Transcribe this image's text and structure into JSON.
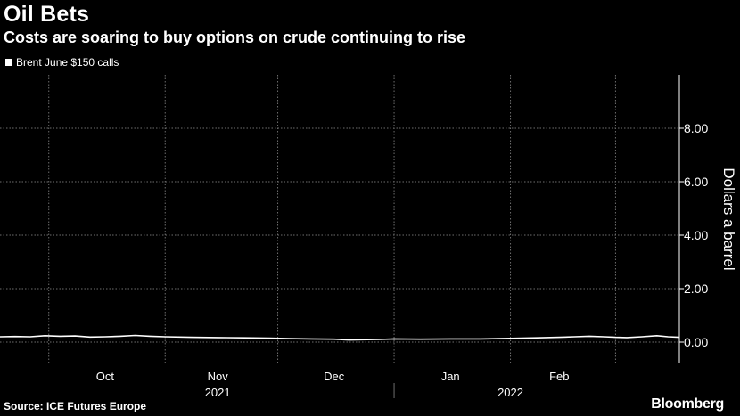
{
  "header": {
    "title": "Oil Bets",
    "subtitle": "Costs are soaring to buy options on crude continuing to rise"
  },
  "footer": {
    "source": "Source: ICE Futures Europe",
    "brand": "Bloomberg"
  },
  "colors": {
    "background": "#000000",
    "line": "#ffffff",
    "grid": "#6e6e6e"
  },
  "chart_data": {
    "type": "line",
    "title": "Oil Bets",
    "subtitle": "Costs are soaring to buy options on crude continuing to rise",
    "ylabel": "Dollars a barrel",
    "xlabel": "",
    "ylim": [
      -0.8,
      10
    ],
    "y_ticks": [
      0,
      2,
      4,
      6,
      8
    ],
    "y_tick_labels": [
      "0.00",
      "2.00",
      "4.00",
      "6.00",
      "8.00"
    ],
    "x_range": [
      "2021-09-18",
      "2022-03-18"
    ],
    "x_month_labels": [
      {
        "label": "Oct",
        "date": "2021-10-16"
      },
      {
        "label": "Nov",
        "date": "2021-11-15"
      },
      {
        "label": "Dec",
        "date": "2021-12-16"
      },
      {
        "label": "Jan",
        "date": "2022-01-16"
      },
      {
        "label": "Feb",
        "date": "2022-02-14"
      }
    ],
    "x_year_labels": [
      {
        "label": "2021",
        "date": "2021-11-15"
      },
      {
        "label": "2022",
        "date": "2022-02-01"
      }
    ],
    "year_divider": "2022-01-01",
    "grid_dates": [
      "2021-10-01",
      "2021-11-01",
      "2021-12-01",
      "2022-01-01",
      "2022-02-01",
      "2022-03-01"
    ],
    "grid": true,
    "legend_position": "top-left",
    "series": [
      {
        "name": "Brent June $150 calls",
        "points": [
          [
            "2021-09-18",
            0.2
          ],
          [
            "2021-09-22",
            0.21
          ],
          [
            "2021-09-26",
            0.2
          ],
          [
            "2021-09-30",
            0.24
          ],
          [
            "2021-10-04",
            0.22
          ],
          [
            "2021-10-08",
            0.23
          ],
          [
            "2021-10-12",
            0.19
          ],
          [
            "2021-10-16",
            0.2
          ],
          [
            "2021-10-20",
            0.22
          ],
          [
            "2021-10-24",
            0.25
          ],
          [
            "2021-10-28",
            0.22
          ],
          [
            "2021-11-01",
            0.2
          ],
          [
            "2021-11-08",
            0.18
          ],
          [
            "2021-11-15",
            0.17
          ],
          [
            "2021-11-22",
            0.16
          ],
          [
            "2021-11-29",
            0.15
          ],
          [
            "2021-12-04",
            0.13
          ],
          [
            "2021-12-10",
            0.12
          ],
          [
            "2021-12-16",
            0.11
          ],
          [
            "2021-12-20",
            0.08
          ],
          [
            "2021-12-28",
            0.1
          ],
          [
            "2022-01-01",
            0.12
          ],
          [
            "2022-01-08",
            0.11
          ],
          [
            "2022-01-16",
            0.12
          ],
          [
            "2022-01-24",
            0.12
          ],
          [
            "2022-02-01",
            0.14
          ],
          [
            "2022-02-08",
            0.16
          ],
          [
            "2022-02-14",
            0.18
          ],
          [
            "2022-02-18",
            0.2
          ],
          [
            "2022-02-22",
            0.22
          ],
          [
            "2022-02-26",
            0.2
          ],
          [
            "2022-03-01",
            0.18
          ],
          [
            "2022-03-04",
            0.17
          ],
          [
            "2022-03-08",
            0.2
          ],
          [
            "2022-03-12",
            0.24
          ],
          [
            "2022-03-15",
            0.2
          ],
          [
            "2022-03-18",
            0.18
          ]
        ]
      }
    ]
  }
}
